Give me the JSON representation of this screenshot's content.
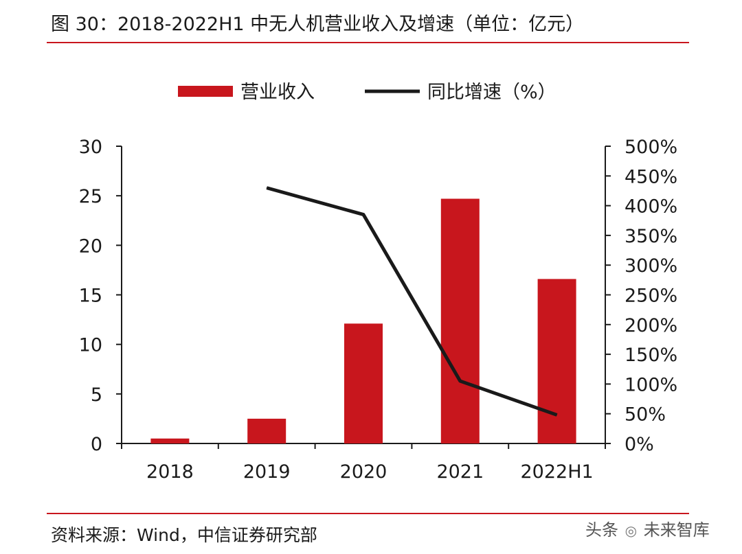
{
  "header": {
    "title": "图 30：2018-2022H1 中无人机营业收入及增速（单位：亿元）"
  },
  "footer": {
    "source": "资料来源：Wind，中信证券研究部",
    "watermark_prefix": "头条",
    "watermark_name": "未来智库"
  },
  "chart_data": {
    "type": "bar+line",
    "title": "2018-2022H1 中无人机营业收入及增速（单位：亿元）",
    "categories": [
      "2018",
      "2019",
      "2020",
      "2021",
      "2022H1"
    ],
    "series": [
      {
        "name": "营业收入",
        "type": "bar",
        "axis": "left",
        "color": "#c8161d",
        "values": [
          0.5,
          2.5,
          12.1,
          24.7,
          16.6
        ]
      },
      {
        "name": "同比增速（%）",
        "type": "line",
        "axis": "right",
        "color": "#1a1a1a",
        "values": [
          null,
          430,
          385,
          105,
          48
        ]
      }
    ],
    "left_axis": {
      "min": 0,
      "max": 30,
      "ticks": [
        0,
        5,
        10,
        15,
        20,
        25,
        30
      ],
      "tick_labels": [
        "0",
        "5",
        "10",
        "15",
        "20",
        "25",
        "30"
      ]
    },
    "right_axis": {
      "min": 0,
      "max": 500,
      "ticks": [
        0,
        50,
        100,
        150,
        200,
        250,
        300,
        350,
        400,
        450,
        500
      ],
      "tick_labels": [
        "0%",
        "50%",
        "100%",
        "150%",
        "200%",
        "250%",
        "300%",
        "350%",
        "400%",
        "450%",
        "500%"
      ]
    },
    "legend": [
      "营业收入",
      "同比增速（%）"
    ],
    "legend_position": "top-center",
    "grid": false
  }
}
